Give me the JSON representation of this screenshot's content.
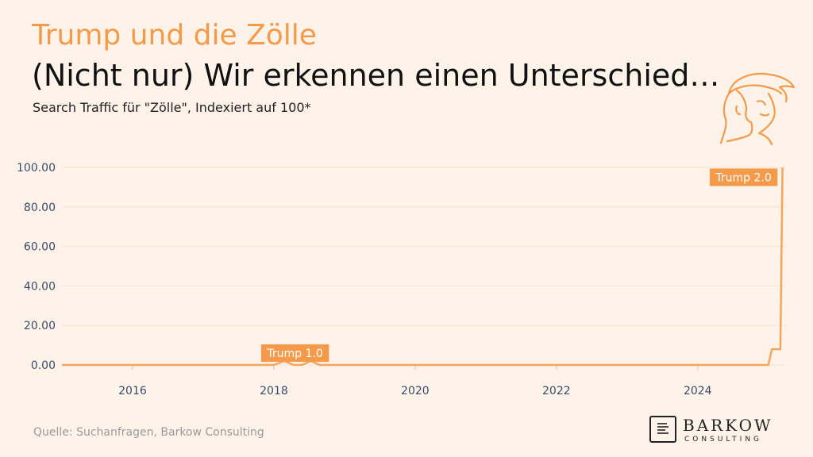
{
  "header": {
    "kicker": "Trump und die Zölle",
    "headline": "(Nicht nur) Wir erkennen einen Unterschied…",
    "subtitle": "Search Traffic für \"Zölle\", Indexiert auf 100*"
  },
  "footer": {
    "source": "Quelle: Suchanfragen, Barkow Consulting"
  },
  "logo": {
    "name": "BARKOW",
    "sub": "CONSULTING"
  },
  "colors": {
    "accent": "#f59a4a",
    "line": "#f5a45c",
    "background": "#fdf3e9",
    "axis_text": "#3b4a6b"
  },
  "chart_data": {
    "type": "line",
    "title": "",
    "xlabel": "",
    "ylabel": "",
    "xlim": [
      2015.0,
      2025.25
    ],
    "ylim": [
      0,
      100
    ],
    "x_ticks": [
      2016,
      2018,
      2020,
      2022,
      2024
    ],
    "y_ticks": [
      0,
      20,
      40,
      60,
      80,
      100
    ],
    "y_tick_labels": [
      "0.00",
      "20.00",
      "40.00",
      "60.00",
      "80.00",
      "100.00"
    ],
    "grid": true,
    "series": [
      {
        "x": [
          2015.0,
          2018.0,
          2018.15,
          2018.28,
          2018.4,
          2018.52,
          2018.65,
          2024.9,
          2025.0,
          2025.05,
          2025.12,
          2025.17,
          2025.2
        ],
        "y": [
          0,
          0,
          2,
          0,
          0,
          2,
          0,
          0,
          0,
          8,
          8,
          8,
          100
        ]
      }
    ],
    "annotations": [
      {
        "text": "Trump 1.0",
        "x": 2018.3,
        "y": 6
      },
      {
        "text": "Trump 2.0",
        "x": 2024.65,
        "y": 95
      }
    ]
  }
}
